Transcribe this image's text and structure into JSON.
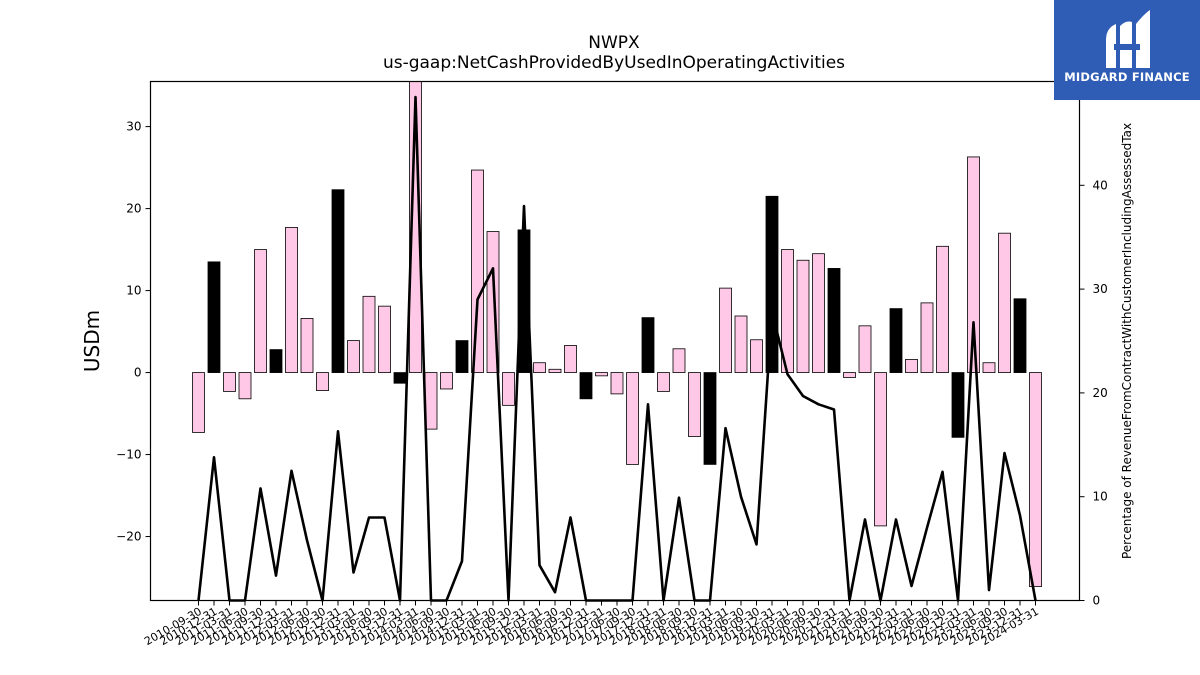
{
  "logo": {
    "text": "MIDGARD FINANCE",
    "color": "#2f5db5"
  },
  "chart_data": {
    "type": "bar",
    "title": "NWPX",
    "subtitle": "us-gaap:NetCashProvidedByUsedInOperatingActivities",
    "ylabel": "USDm",
    "y2label": "Percentage of RevenueFromContractWithCustomerIncludingAssessedTax",
    "ylim": [
      -27.8,
      35.5
    ],
    "y2lim": [
      0,
      50
    ],
    "yticks": [
      -20,
      -10,
      0,
      10,
      20,
      30
    ],
    "y2ticks": [
      0,
      10,
      20,
      30,
      40
    ],
    "colors": {
      "positive_quarter": "#ffc8e6",
      "highlight_quarter": "#000000",
      "line": "#000000"
    },
    "categories": [
      "2010-09-30",
      "2010-12-31",
      "2011-03-31",
      "2011-06-30",
      "2011-09-30",
      "2011-12-31",
      "2012-03-31",
      "2012-06-30",
      "2012-09-30",
      "2012-12-31",
      "2013-03-31",
      "2013-06-30",
      "2013-09-30",
      "2013-12-31",
      "2014-03-31",
      "2014-06-30",
      "2014-09-30",
      "2014-12-31",
      "2015-03-31",
      "2015-06-30",
      "2015-09-30",
      "2015-12-31",
      "2016-03-31",
      "2016-06-30",
      "2016-09-30",
      "2016-12-31",
      "2017-03-31",
      "2017-06-30",
      "2017-09-30",
      "2017-12-31",
      "2018-03-31",
      "2018-06-30",
      "2018-09-30",
      "2018-12-31",
      "2019-03-31",
      "2019-06-30",
      "2019-09-30",
      "2019-12-31",
      "2020-03-31",
      "2020-06-30",
      "2020-09-30",
      "2020-12-31",
      "2021-03-31",
      "2021-06-30",
      "2021-09-30",
      "2021-12-31",
      "2022-03-31",
      "2022-06-30",
      "2022-09-30",
      "2022-12-31",
      "2023-03-31",
      "2023-06-30",
      "2023-09-30",
      "2023-12-31",
      "2024-03-31"
    ],
    "xtick_labels": [
      "2010-09-30",
      "2010-12-31",
      "2011-03-31",
      "2011-06-30",
      "2011-09-30",
      "2011-12-31",
      "2012-03-31",
      "2012-06-30",
      "2012-09-30",
      "2012-12-31",
      "2013-03-31",
      "2013-06-30",
      "2013-09-30",
      "2013-12-31",
      "2014-03-31",
      "2014-06-30",
      "2014-09-30",
      "2014-12-31",
      "2015-03-31",
      "2015-06-30",
      "2015-09-30",
      "2015-12-31",
      "2016-03-31",
      "2016-06-30",
      "2016-09-30",
      "2016-12-31",
      "2017-03-31",
      "2017-06-30",
      "2017-09-30",
      "2017-12-31",
      "2018-03-31",
      "2018-06-30",
      "2018-09-30",
      "2018-12-31",
      "2019-03-31",
      "2019-06-30",
      "2019-09-30",
      "2019-12-31",
      "2020-03-31",
      "2020-06-30",
      "2020-09-30",
      "2020-12-31",
      "2021-03-31",
      "2021-06-30",
      "2021-09-30",
      "2021-12-31",
      "2022-03-31",
      "2022-06-30",
      "2022-09-30",
      "2022-12-31",
      "2023-03-31",
      "2023-06-30",
      "2023-09-30",
      "2023-12-31",
      "2024-03-31"
    ],
    "series": [
      {
        "type": "bar",
        "values": [
          -7.3,
          13.5,
          -2.3,
          -3.2,
          15.0,
          2.8,
          17.7,
          6.6,
          -2.2,
          22.3,
          3.9,
          9.3,
          8.1,
          -1.3,
          35.5,
          -6.9,
          -2.0,
          3.9,
          24.7,
          17.2,
          -4.0,
          17.4,
          1.2,
          0.4,
          3.3,
          -3.2,
          -0.4,
          -2.6,
          -11.2,
          6.7,
          -2.3,
          2.9,
          -7.8,
          -11.2,
          10.3,
          6.9,
          4.0,
          21.5,
          15.0,
          13.7,
          14.5,
          12.7,
          -0.6,
          5.7,
          -18.7,
          7.8,
          1.6,
          8.5,
          15.4,
          -7.9,
          26.3,
          1.2,
          17.0,
          9.0,
          -26.1
        ],
        "highlight": [
          false,
          true,
          false,
          false,
          false,
          true,
          false,
          false,
          false,
          true,
          false,
          false,
          false,
          true,
          false,
          false,
          false,
          true,
          false,
          false,
          false,
          true,
          false,
          false,
          false,
          true,
          false,
          false,
          false,
          true,
          false,
          false,
          false,
          true,
          false,
          false,
          false,
          true,
          false,
          false,
          false,
          true,
          false,
          false,
          false,
          true,
          false,
          false,
          false,
          true,
          false,
          false,
          false,
          true,
          false
        ]
      },
      {
        "type": "line",
        "axis": "right",
        "values": [
          0,
          13.8,
          0,
          0,
          10.8,
          2.4,
          12.5,
          5.8,
          0,
          16.3,
          2.7,
          8.0,
          8.0,
          0,
          48.5,
          0,
          0,
          3.8,
          29.0,
          32.0,
          0,
          38.0,
          3.4,
          0.8,
          8.0,
          0,
          0,
          0,
          0,
          18.9,
          0,
          9.9,
          0,
          0,
          16.6,
          10.0,
          5.4,
          27.8,
          21.8,
          19.7,
          18.9,
          18.4,
          0,
          7.8,
          0,
          7.8,
          1.4,
          7.0,
          12.4,
          0,
          26.8,
          1.0,
          14.2,
          8.2,
          0
        ]
      }
    ]
  }
}
